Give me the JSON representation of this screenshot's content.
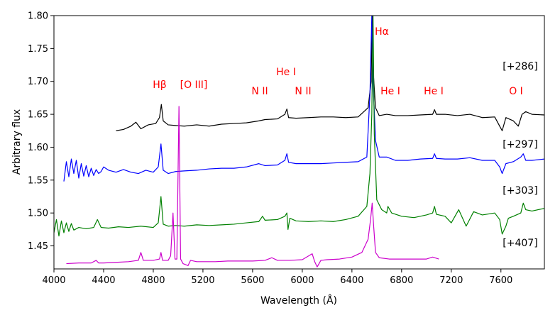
{
  "chart_data": {
    "type": "line",
    "title": "",
    "xlabel": "Wavelength (Å)",
    "ylabel": "Arbitrary flux",
    "xlim": [
      4000,
      7950
    ],
    "ylim": [
      1.415,
      1.8
    ],
    "xticks": [
      4000,
      4400,
      4800,
      5200,
      5600,
      6000,
      6400,
      6800,
      7200,
      7600
    ],
    "yticks": [
      1.45,
      1.5,
      1.55,
      1.6,
      1.65,
      1.7,
      1.75,
      1.8
    ],
    "xtick_labels": [
      "4000",
      "4400",
      "4800",
      "5200",
      "5600",
      "6000",
      "6400",
      "6800",
      "7200",
      "7600"
    ],
    "ytick_labels": [
      "1.45",
      "1.50",
      "1.55",
      "1.60",
      "1.65",
      "1.70",
      "1.75",
      "1.80"
    ],
    "grid": false,
    "series": [
      {
        "name": "[+286]",
        "color": "#000000",
        "x": [
          4500,
          4560,
          4620,
          4660,
          4700,
          4760,
          4820,
          4850,
          4865,
          4880,
          4920,
          4980,
          5050,
          5150,
          5250,
          5350,
          5450,
          5550,
          5650,
          5700,
          5800,
          5860,
          5876,
          5890,
          5950,
          6050,
          6150,
          6250,
          6350,
          6450,
          6530,
          6555,
          6563,
          6570,
          6590,
          6620,
          6680,
          6750,
          6850,
          6950,
          7050,
          7065,
          7080,
          7150,
          7250,
          7350,
          7450,
          7550,
          7590,
          7610,
          7640,
          7700,
          7740,
          7770,
          7800,
          7850,
          7950
        ],
        "values": [
          1.625,
          1.627,
          1.632,
          1.638,
          1.628,
          1.634,
          1.636,
          1.645,
          1.665,
          1.64,
          1.634,
          1.633,
          1.632,
          1.634,
          1.632,
          1.635,
          1.636,
          1.637,
          1.64,
          1.642,
          1.643,
          1.65,
          1.658,
          1.645,
          1.644,
          1.645,
          1.646,
          1.646,
          1.645,
          1.646,
          1.66,
          1.7,
          1.8,
          1.72,
          1.66,
          1.648,
          1.65,
          1.648,
          1.648,
          1.649,
          1.65,
          1.657,
          1.65,
          1.65,
          1.648,
          1.65,
          1.645,
          1.646,
          1.632,
          1.625,
          1.645,
          1.64,
          1.632,
          1.65,
          1.654,
          1.65,
          1.649
        ]
      },
      {
        "name": "[+297]",
        "color": "#0000ff",
        "x": [
          4080,
          4100,
          4120,
          4140,
          4160,
          4180,
          4200,
          4220,
          4240,
          4260,
          4280,
          4300,
          4320,
          4340,
          4360,
          4380,
          4400,
          4440,
          4500,
          4560,
          4620,
          4680,
          4740,
          4800,
          4840,
          4862,
          4880,
          4920,
          4980,
          5050,
          5150,
          5250,
          5350,
          5450,
          5550,
          5650,
          5700,
          5800,
          5860,
          5876,
          5890,
          5950,
          6050,
          6150,
          6250,
          6350,
          6450,
          6520,
          6545,
          6560,
          6570,
          6590,
          6620,
          6680,
          6750,
          6850,
          6950,
          7050,
          7065,
          7080,
          7150,
          7250,
          7350,
          7450,
          7550,
          7590,
          7610,
          7640,
          7700,
          7760,
          7780,
          7800,
          7850,
          7950
        ],
        "values": [
          1.548,
          1.578,
          1.555,
          1.582,
          1.56,
          1.58,
          1.553,
          1.575,
          1.556,
          1.572,
          1.555,
          1.568,
          1.557,
          1.566,
          1.56,
          1.563,
          1.57,
          1.565,
          1.562,
          1.566,
          1.562,
          1.56,
          1.565,
          1.562,
          1.57,
          1.605,
          1.565,
          1.56,
          1.563,
          1.564,
          1.565,
          1.567,
          1.568,
          1.568,
          1.57,
          1.575,
          1.572,
          1.573,
          1.58,
          1.59,
          1.577,
          1.575,
          1.575,
          1.575,
          1.576,
          1.577,
          1.578,
          1.585,
          1.68,
          1.8,
          1.7,
          1.61,
          1.585,
          1.585,
          1.58,
          1.58,
          1.582,
          1.583,
          1.59,
          1.583,
          1.582,
          1.582,
          1.584,
          1.58,
          1.58,
          1.57,
          1.56,
          1.575,
          1.578,
          1.585,
          1.59,
          1.58,
          1.58,
          1.582
        ]
      },
      {
        "name": "[+303]",
        "color": "#008000",
        "x": [
          4000,
          4020,
          4040,
          4060,
          4080,
          4100,
          4120,
          4140,
          4160,
          4200,
          4260,
          4320,
          4350,
          4380,
          4440,
          4520,
          4600,
          4700,
          4800,
          4840,
          4862,
          4880,
          4920,
          4980,
          5050,
          5150,
          5250,
          5350,
          5450,
          5550,
          5650,
          5680,
          5700,
          5800,
          5860,
          5876,
          5885,
          5900,
          5950,
          6050,
          6150,
          6250,
          6350,
          6450,
          6520,
          6545,
          6560,
          6570,
          6580,
          6600,
          6640,
          6680,
          6690,
          6720,
          6800,
          6900,
          7000,
          7050,
          7065,
          7080,
          7150,
          7200,
          7260,
          7320,
          7380,
          7450,
          7550,
          7590,
          7610,
          7640,
          7660,
          7700,
          7760,
          7780,
          7800,
          7850,
          7950
        ],
        "values": [
          1.47,
          1.49,
          1.465,
          1.488,
          1.47,
          1.485,
          1.472,
          1.484,
          1.474,
          1.478,
          1.476,
          1.478,
          1.49,
          1.478,
          1.477,
          1.479,
          1.478,
          1.48,
          1.478,
          1.485,
          1.525,
          1.483,
          1.48,
          1.481,
          1.48,
          1.482,
          1.481,
          1.482,
          1.483,
          1.485,
          1.487,
          1.495,
          1.489,
          1.49,
          1.495,
          1.5,
          1.475,
          1.492,
          1.488,
          1.487,
          1.488,
          1.487,
          1.49,
          1.495,
          1.51,
          1.56,
          1.65,
          1.8,
          1.62,
          1.52,
          1.505,
          1.5,
          1.51,
          1.5,
          1.495,
          1.493,
          1.497,
          1.5,
          1.51,
          1.498,
          1.495,
          1.485,
          1.505,
          1.48,
          1.502,
          1.497,
          1.5,
          1.49,
          1.468,
          1.48,
          1.492,
          1.495,
          1.5,
          1.515,
          1.505,
          1.503,
          1.507
        ]
      },
      {
        "name": "[+407]",
        "color": "#cc00cc",
        "x": [
          4100,
          4200,
          4300,
          4340,
          4360,
          4400,
          4500,
          4600,
          4680,
          4700,
          4720,
          4800,
          4850,
          4862,
          4875,
          4920,
          4940,
          4959,
          4975,
          4990,
          5007,
          5020,
          5040,
          5080,
          5100,
          5150,
          5200,
          5300,
          5400,
          5500,
          5600,
          5700,
          5755,
          5800,
          5900,
          6000,
          6080,
          6100,
          6120,
          6150,
          6200,
          6300,
          6400,
          6480,
          6530,
          6550,
          6563,
          6575,
          6590,
          6620,
          6700,
          6800,
          6900,
          7000,
          7050,
          7100
        ],
        "values": [
          1.423,
          1.424,
          1.424,
          1.428,
          1.424,
          1.424,
          1.425,
          1.426,
          1.428,
          1.44,
          1.428,
          1.428,
          1.43,
          1.44,
          1.428,
          1.428,
          1.435,
          1.5,
          1.43,
          1.43,
          1.662,
          1.43,
          1.423,
          1.42,
          1.428,
          1.426,
          1.426,
          1.426,
          1.427,
          1.427,
          1.427,
          1.428,
          1.432,
          1.428,
          1.428,
          1.429,
          1.438,
          1.426,
          1.418,
          1.428,
          1.429,
          1.43,
          1.433,
          1.44,
          1.46,
          1.49,
          1.515,
          1.48,
          1.44,
          1.432,
          1.43,
          1.43,
          1.43,
          1.43,
          1.433,
          1.43
        ]
      }
    ],
    "line_labels": [
      "Hβ",
      "[O III]",
      "N II",
      "He I",
      "N II",
      "Hα",
      "He I",
      "He I",
      "O I"
    ],
    "epoch_labels": [
      "[+286]",
      "[+297]",
      "[+303]",
      "[+407]"
    ]
  }
}
